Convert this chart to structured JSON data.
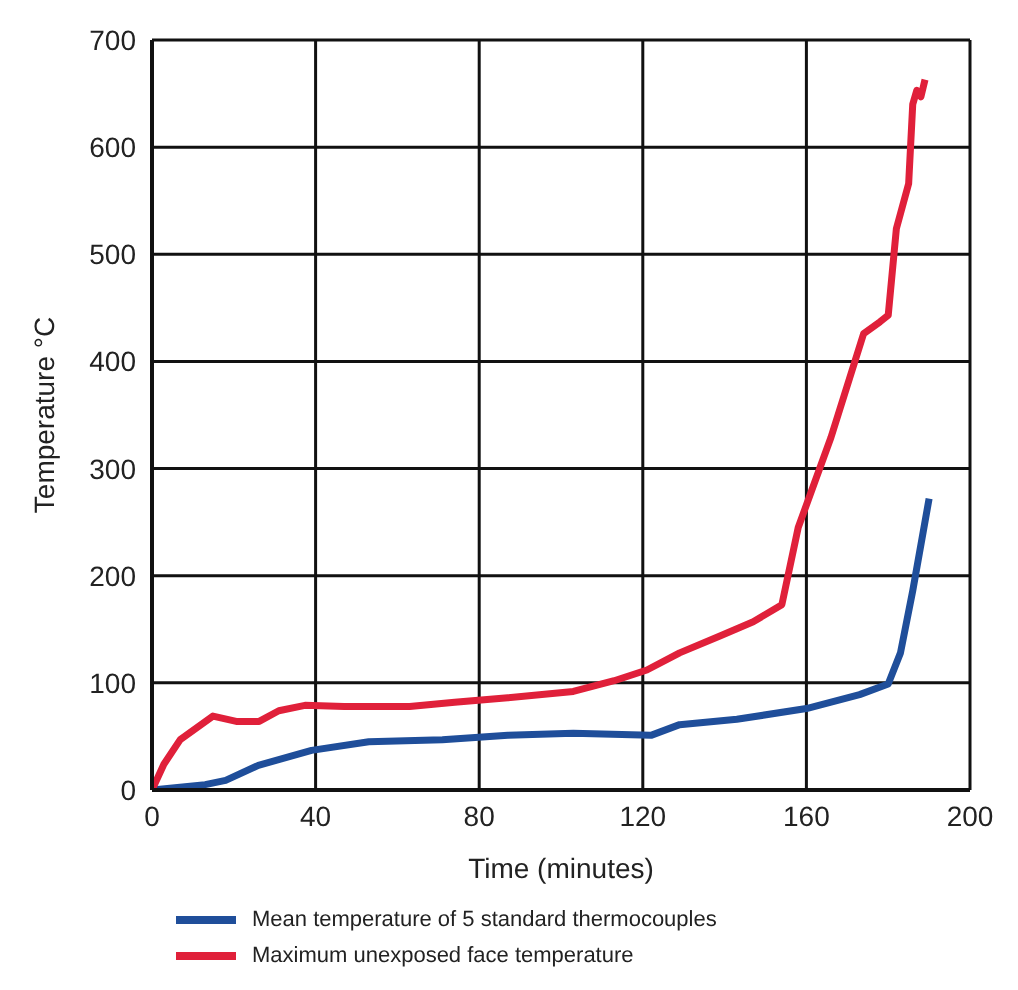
{
  "chart_data": {
    "type": "line",
    "xlabel": "Time (minutes)",
    "ylabel": "Temperature °C",
    "xlim": [
      0,
      200
    ],
    "xticks": [
      0,
      40,
      80,
      120,
      160,
      200
    ],
    "ylim": [
      0,
      700
    ],
    "yticks": [
      0,
      100,
      200,
      300,
      400,
      500,
      600,
      700
    ],
    "grid": true,
    "legend": "bottom",
    "marker": "none",
    "line_style": "solid",
    "series": [
      {
        "name": "Mean temperature of 5 standard thermocouples",
        "color": "#1f4e9a",
        "x": [
          0,
          13,
          18,
          26,
          39,
          53,
          71,
          87,
          103,
          122,
          129,
          143,
          160,
          173,
          180,
          183,
          186,
          190
        ],
        "values": [
          0,
          5,
          9,
          23,
          37,
          45,
          47,
          51,
          53,
          51,
          61,
          66,
          76,
          89,
          99,
          128,
          186,
          272
        ]
      },
      {
        "name": "Maximum unexposed face temperature",
        "color": "#e0203a",
        "x": [
          0,
          2.9,
          6.9,
          14.9,
          20.6,
          26.2,
          31,
          37.4,
          47,
          63,
          74,
          87,
          103,
          113,
          121,
          129,
          139,
          147,
          154,
          158,
          166,
          174,
          178,
          180,
          182,
          185,
          186,
          187,
          188,
          189
        ],
        "values": [
          0,
          24,
          47,
          69,
          64,
          64,
          74,
          79,
          78,
          78,
          82,
          86,
          92,
          102,
          112,
          128,
          144,
          157,
          173,
          245,
          329,
          426,
          437,
          443,
          524,
          566,
          640,
          653,
          647,
          663
        ]
      }
    ]
  }
}
